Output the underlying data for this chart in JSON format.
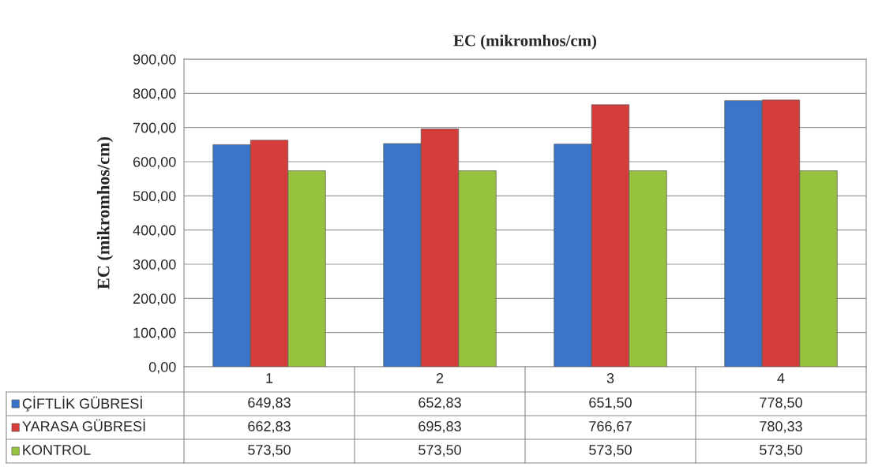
{
  "chart_data": {
    "type": "bar",
    "title": "EC (mikromhos/cm)",
    "ylabel": "EC (mikromhos/cm)",
    "categories": [
      "1",
      "2",
      "3",
      "4"
    ],
    "series": [
      {
        "name": "ÇİFTLİK GÜBRESİ",
        "color": "#3b74c9",
        "values": [
          649.83,
          652.83,
          651.5,
          778.5
        ],
        "value_labels": [
          "649,83",
          "652,83",
          "651,50",
          "778,50"
        ]
      },
      {
        "name": "YARASA GÜBRESİ",
        "color": "#d33d3a",
        "values": [
          662.83,
          695.83,
          766.67,
          780.33
        ],
        "value_labels": [
          "662,83",
          "695,83",
          "766,67",
          "780,33"
        ]
      },
      {
        "name": "KONTROL",
        "color": "#97c23d",
        "values": [
          573.5,
          573.5,
          573.5,
          573.5
        ],
        "value_labels": [
          "573,50",
          "573,50",
          "573,50",
          "573,50"
        ]
      }
    ],
    "ylim": [
      0,
      900
    ],
    "yticks": [
      {
        "value": 0,
        "label": "0,00"
      },
      {
        "value": 100,
        "label": "100,00"
      },
      {
        "value": 200,
        "label": "200,00"
      },
      {
        "value": 300,
        "label": "300,00"
      },
      {
        "value": 400,
        "label": "400,00"
      },
      {
        "value": 500,
        "label": "500,00"
      },
      {
        "value": 600,
        "label": "600,00"
      },
      {
        "value": 700,
        "label": "700,00"
      },
      {
        "value": 800,
        "label": "800,00"
      },
      {
        "value": 900,
        "label": "900,00"
      }
    ],
    "grid": "y",
    "legend": "bottom left"
  }
}
